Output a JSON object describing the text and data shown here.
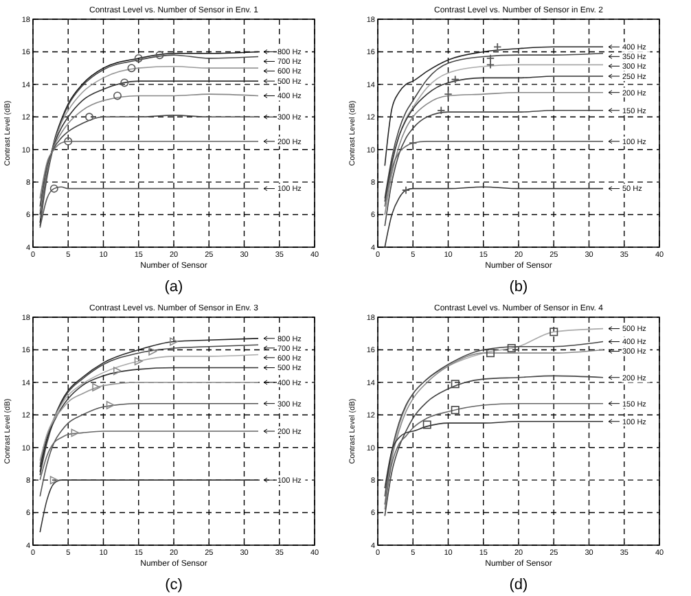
{
  "chart_data": [
    {
      "type": "line",
      "title": "Contrast Level vs. Number of Sensor in Env. 1",
      "xlabel": "Number of Sensor",
      "ylabel": "Contrast Level (dB)",
      "annotations": [
        "(a)"
      ],
      "xlim": [
        0,
        40
      ],
      "ylim": [
        4,
        18
      ],
      "xticks": [
        0,
        5,
        10,
        15,
        20,
        25,
        30,
        35,
        40
      ],
      "yticks": [
        4,
        6,
        8,
        10,
        12,
        14,
        16,
        18
      ],
      "grid": true,
      "legend": false,
      "x": [
        1,
        2,
        3,
        4,
        5,
        7,
        10,
        15,
        20,
        25,
        32
      ],
      "series": [
        {
          "name": "800 Hz",
          "color": "#111111",
          "values": [
            5.5,
            8.5,
            10.5,
            11.8,
            12.8,
            14.0,
            15.0,
            15.6,
            15.9,
            15.9,
            16.0
          ]
        },
        {
          "name": "700 Hz",
          "color": "#444444",
          "values": [
            5.3,
            8.3,
            10.3,
            11.7,
            12.7,
            13.9,
            14.9,
            15.5,
            15.8,
            15.6,
            15.7
          ]
        },
        {
          "name": "600 Hz",
          "color": "#999999",
          "values": [
            5.8,
            8.6,
            10.4,
            11.6,
            12.4,
            13.5,
            14.4,
            15.0,
            15.1,
            15.0,
            15.0
          ]
        },
        {
          "name": "500 Hz",
          "color": "#333333",
          "values": [
            6.0,
            8.7,
            10.3,
            11.3,
            12.0,
            13.0,
            13.7,
            14.2,
            14.2,
            14.2,
            14.2
          ]
        },
        {
          "name": "400 Hz",
          "color": "#888888",
          "values": [
            6.2,
            8.8,
            10.2,
            11.0,
            11.6,
            12.4,
            13.0,
            13.3,
            13.3,
            13.4,
            13.3
          ]
        },
        {
          "name": "300 Hz",
          "color": "#444444",
          "values": [
            6.5,
            9.0,
            10.1,
            10.7,
            11.1,
            11.6,
            12.0,
            12.0,
            12.1,
            12.0,
            12.0
          ]
        },
        {
          "name": "200 Hz",
          "color": "#777777",
          "values": [
            7.0,
            9.2,
            10.0,
            10.4,
            10.5,
            10.5,
            10.5,
            10.5,
            10.5,
            10.5,
            10.5
          ]
        },
        {
          "name": "100 Hz",
          "color": "#555555",
          "values": [
            5.2,
            7.0,
            7.6,
            7.7,
            7.6,
            7.6,
            7.6,
            7.6,
            7.6,
            7.6,
            7.6
          ]
        },
        {
          "type": "scatter",
          "marker": "circle",
          "color": "#555555",
          "x": [
            3,
            5,
            8,
            12,
            13,
            14,
            15,
            18
          ],
          "values": [
            7.6,
            10.5,
            12.0,
            13.3,
            14.1,
            15.0,
            15.6,
            15.8
          ]
        }
      ]
    },
    {
      "type": "line",
      "title": "Contrast Level vs. Number of Sensor in Env. 2",
      "xlabel": "Number of Sensor",
      "ylabel": "Contrast Level (dB)",
      "annotations": [
        "(b)"
      ],
      "xlim": [
        0,
        40
      ],
      "ylim": [
        4,
        18
      ],
      "xticks": [
        0,
        5,
        10,
        15,
        20,
        25,
        30,
        35,
        40
      ],
      "yticks": [
        4,
        6,
        8,
        10,
        12,
        14,
        16,
        18
      ],
      "grid": true,
      "legend": false,
      "x": [
        1,
        2,
        3,
        4,
        5,
        7,
        10,
        15,
        20,
        25,
        32
      ],
      "series": [
        {
          "name": "400 Hz",
          "color": "#222222",
          "values": [
            9.0,
            12.5,
            13.5,
            14.0,
            14.2,
            14.8,
            15.5,
            16.0,
            16.2,
            16.3,
            16.3
          ]
        },
        {
          "name": "350 Hz",
          "color": "#444444",
          "values": [
            7.0,
            9.5,
            11.2,
            12.3,
            13.0,
            14.3,
            15.3,
            15.7,
            15.8,
            15.8,
            15.9
          ]
        },
        {
          "name": "300 Hz",
          "color": "#aaaaaa",
          "values": [
            6.5,
            9.0,
            10.8,
            11.9,
            12.6,
            13.8,
            14.7,
            15.1,
            15.2,
            15.2,
            15.2
          ]
        },
        {
          "name": "250 Hz",
          "color": "#333333",
          "values": [
            6.8,
            9.2,
            10.8,
            11.8,
            12.5,
            13.4,
            14.1,
            14.4,
            14.4,
            14.5,
            14.5
          ]
        },
        {
          "name": "200 Hz",
          "color": "#888888",
          "values": [
            6.0,
            8.5,
            10.2,
            11.3,
            12.0,
            12.8,
            13.3,
            13.4,
            13.5,
            13.5,
            13.5
          ]
        },
        {
          "name": "150 Hz",
          "color": "#444444",
          "values": [
            5.3,
            8.0,
            9.7,
            10.7,
            11.3,
            12.0,
            12.3,
            12.3,
            12.3,
            12.4,
            12.4
          ]
        },
        {
          "name": "100 Hz",
          "color": "#666666",
          "values": [
            6.5,
            8.8,
            9.8,
            10.2,
            10.4,
            10.5,
            10.5,
            10.5,
            10.5,
            10.5,
            10.5
          ]
        },
        {
          "name": "50 Hz",
          "color": "#333333",
          "values": [
            4.0,
            6.0,
            7.0,
            7.5,
            7.6,
            7.6,
            7.6,
            7.7,
            7.6,
            7.6,
            7.6
          ]
        },
        {
          "type": "scatter",
          "marker": "cross",
          "color": "#555555",
          "x": [
            4,
            5,
            9,
            10,
            11,
            16,
            16,
            17
          ],
          "values": [
            7.5,
            10.4,
            12.4,
            13.4,
            14.3,
            15.2,
            15.6,
            16.3
          ]
        }
      ]
    },
    {
      "type": "line",
      "title": "Contrast Level vs. Number of Sensor in Env. 3",
      "xlabel": "Number of Sensor",
      "ylabel": "Contrast Level (dB)",
      "annotations": [
        "(c)"
      ],
      "xlim": [
        0,
        40
      ],
      "ylim": [
        4,
        18
      ],
      "xticks": [
        0,
        5,
        10,
        15,
        20,
        25,
        30,
        35,
        40
      ],
      "yticks": [
        4,
        6,
        8,
        10,
        12,
        14,
        16,
        18
      ],
      "grid": true,
      "legend": false,
      "x": [
        1,
        2,
        3,
        4,
        5,
        7,
        10,
        15,
        20,
        25,
        32
      ],
      "series": [
        {
          "name": "800 Hz",
          "color": "#222222",
          "values": [
            8.5,
            10.5,
            11.8,
            12.8,
            13.5,
            14.3,
            15.2,
            16.0,
            16.5,
            16.6,
            16.7
          ]
        },
        {
          "name": "700 Hz",
          "color": "#444444",
          "values": [
            8.3,
            10.3,
            11.7,
            12.7,
            13.4,
            14.2,
            15.1,
            15.8,
            16.1,
            16.2,
            16.3
          ]
        },
        {
          "name": "600 Hz",
          "color": "#aaaaaa",
          "values": [
            9.0,
            10.8,
            11.8,
            12.6,
            13.2,
            13.9,
            14.6,
            15.3,
            15.6,
            15.6,
            15.7
          ]
        },
        {
          "name": "500 Hz",
          "color": "#333333",
          "values": [
            8.8,
            10.6,
            11.6,
            12.4,
            13.0,
            13.8,
            14.4,
            14.8,
            14.9,
            14.9,
            14.9
          ]
        },
        {
          "name": "400 Hz",
          "color": "#999999",
          "values": [
            9.2,
            10.8,
            11.7,
            12.3,
            12.8,
            13.3,
            13.8,
            14.0,
            14.0,
            14.0,
            14.0
          ]
        },
        {
          "name": "300 Hz",
          "color": "#555555",
          "values": [
            7.0,
            9.0,
            10.3,
            11.0,
            11.5,
            12.0,
            12.5,
            12.7,
            12.7,
            12.7,
            12.7
          ]
        },
        {
          "name": "200 Hz",
          "color": "#666666",
          "values": [
            8.0,
            9.5,
            10.3,
            10.6,
            10.8,
            10.9,
            11.0,
            11.0,
            11.0,
            11.0,
            11.0
          ]
        },
        {
          "name": "100 Hz",
          "color": "#333333",
          "values": [
            4.8,
            6.8,
            7.8,
            8.0,
            8.0,
            8.0,
            8.0,
            8.0,
            8.0,
            8.0,
            8.0
          ]
        },
        {
          "type": "scatter",
          "marker": "triangle",
          "color": "#888888",
          "x": [
            3,
            6,
            11,
            9,
            12,
            15,
            17,
            20
          ],
          "values": [
            8.0,
            10.9,
            12.6,
            13.7,
            14.7,
            15.3,
            15.9,
            16.5
          ]
        }
      ]
    },
    {
      "type": "line",
      "title": "Contrast Level vs. Number of Sensor in Env. 4",
      "xlabel": "Number of Sensor",
      "ylabel": "Contrast Level (dB)",
      "annotations": [
        "(d)"
      ],
      "xlim": [
        0,
        40
      ],
      "ylim": [
        4,
        18
      ],
      "xticks": [
        0,
        5,
        10,
        15,
        20,
        25,
        30,
        35,
        40
      ],
      "yticks": [
        4,
        6,
        8,
        10,
        12,
        14,
        16,
        18
      ],
      "grid": true,
      "legend": false,
      "x": [
        1,
        2,
        3,
        4,
        5,
        7,
        10,
        15,
        20,
        25,
        32
      ],
      "series": [
        {
          "name": "500 Hz",
          "color": "#aaaaaa",
          "values": [
            6.5,
            9.5,
            11.3,
            12.5,
            13.3,
            14.2,
            15.0,
            15.8,
            16.2,
            17.1,
            17.3
          ]
        },
        {
          "name": "400 Hz",
          "color": "#444444",
          "values": [
            7.0,
            9.8,
            11.5,
            12.6,
            13.3,
            14.2,
            15.1,
            16.0,
            16.2,
            16.2,
            16.5
          ]
        },
        {
          "name": "300 Hz",
          "color": "#888888",
          "values": [
            6.2,
            9.3,
            11.0,
            12.2,
            13.0,
            14.0,
            15.0,
            15.8,
            15.8,
            15.8,
            16.0
          ]
        },
        {
          "name": "200 Hz",
          "color": "#444444",
          "values": [
            5.8,
            8.5,
            10.0,
            11.0,
            11.8,
            12.8,
            13.6,
            14.2,
            14.3,
            14.4,
            14.3
          ]
        },
        {
          "name": "150 Hz",
          "color": "#666666",
          "values": [
            6.5,
            9.0,
            10.2,
            10.7,
            11.2,
            11.8,
            12.2,
            12.6,
            12.7,
            12.7,
            12.7
          ]
        },
        {
          "name": "100 Hz",
          "color": "#333333",
          "values": [
            7.5,
            9.8,
            10.6,
            10.9,
            11.0,
            11.3,
            11.5,
            11.5,
            11.6,
            11.6,
            11.6
          ]
        },
        {
          "type": "scatter",
          "marker": "square",
          "color": "#444444",
          "x": [
            7,
            11,
            11,
            16,
            19,
            25
          ],
          "values": [
            11.4,
            12.3,
            13.9,
            15.8,
            16.1,
            17.1
          ]
        }
      ]
    }
  ]
}
